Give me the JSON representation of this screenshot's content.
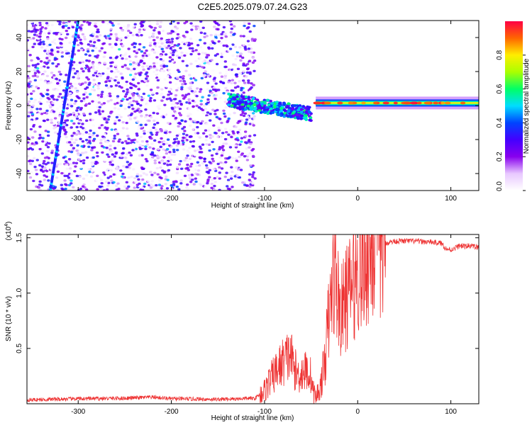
{
  "title": "C2E5.2025.079.07.24.G23",
  "colors": {
    "line": "#ee3333",
    "axis": "#000000",
    "background": "#ffffff"
  },
  "chart_data": [
    {
      "type": "heatmap",
      "name": "spectrogram",
      "xlabel": "Height of straight line (km)",
      "ylabel": "Frequency (Hz)",
      "xlim": [
        -355,
        130
      ],
      "ylim": [
        -50,
        50
      ],
      "x_ticks": [
        -300,
        -200,
        -100,
        0,
        100
      ],
      "y_ticks": [
        -40,
        -20,
        0,
        20,
        40
      ],
      "grid": false,
      "colorbar": {
        "label": "Normalized spectral amplitude",
        "range": [
          0,
          1
        ],
        "ticks": [
          "0.0",
          "0.2",
          "0.4",
          "0.6",
          "0.8"
        ],
        "colors": [
          "#ffffff",
          "#e8c8ff",
          "#8800ee",
          "#4400ff",
          "#0044ff",
          "#00ddff",
          "#00ff66",
          "#aaff00",
          "#ffee00",
          "#ff6600",
          "#ff0044"
        ]
      },
      "features": [
        {
          "label": "broadband noise",
          "x_range": [
            -355,
            -110
          ],
          "y_range": [
            -50,
            50
          ],
          "amplitude": 0.15
        },
        {
          "label": "diagonal track",
          "x_start": -330,
          "x_end": -300,
          "y_start": -50,
          "y_end": 50,
          "amplitude": 0.35
        },
        {
          "label": "signal trace",
          "x_range": [
            -140,
            -50
          ],
          "y_start": 3,
          "y_end": -5,
          "amplitude": 0.4
        },
        {
          "label": "carrier",
          "x_range": [
            -45,
            130
          ],
          "y": 1.5,
          "amplitude": 0.8
        }
      ]
    },
    {
      "type": "line",
      "name": "snr",
      "xlabel": "Height of straight line (km)",
      "ylabel": "SNR (10 * v/v)",
      "y_scale_label": "(x10",
      "y_scale_exp": "4",
      "y_scale_close": ")",
      "xlim": [
        -355,
        130
      ],
      "ylim": [
        0,
        15300
      ],
      "x_ticks": [
        -300,
        -200,
        -100,
        0,
        100
      ],
      "y_ticks": [
        "0.5",
        "1.0",
        "1.5"
      ],
      "y_tick_values": [
        5000,
        10000,
        15000
      ],
      "grid": false,
      "series": [
        {
          "x": [
            -355,
            -300,
            -250,
            -220,
            -200,
            -150,
            -110,
            -100,
            -95,
            -90,
            -85,
            -80,
            -75,
            -72,
            -70,
            -65,
            -60,
            -55,
            -50,
            -48,
            -45,
            -40,
            -35,
            -32,
            -30,
            -28,
            -25,
            -20,
            -18,
            -15,
            -10,
            -5,
            0,
            5,
            10,
            20,
            30,
            40,
            60,
            80,
            90,
            95,
            100,
            105,
            110,
            115,
            120,
            130
          ],
          "y": [
            350,
            450,
            500,
            600,
            450,
            400,
            500,
            1200,
            2000,
            2600,
            3200,
            3800,
            4200,
            4500,
            3800,
            2600,
            2800,
            3000,
            2500,
            1200,
            600,
            1500,
            4000,
            7000,
            8000,
            10000,
            12000,
            9000,
            8000,
            9000,
            10000,
            11000,
            12000,
            12500,
            13500,
            14300,
            14500,
            14700,
            14700,
            14600,
            14500,
            14000,
            13900,
            14100,
            14300,
            14200,
            14300,
            14100
          ]
        }
      ]
    }
  ]
}
